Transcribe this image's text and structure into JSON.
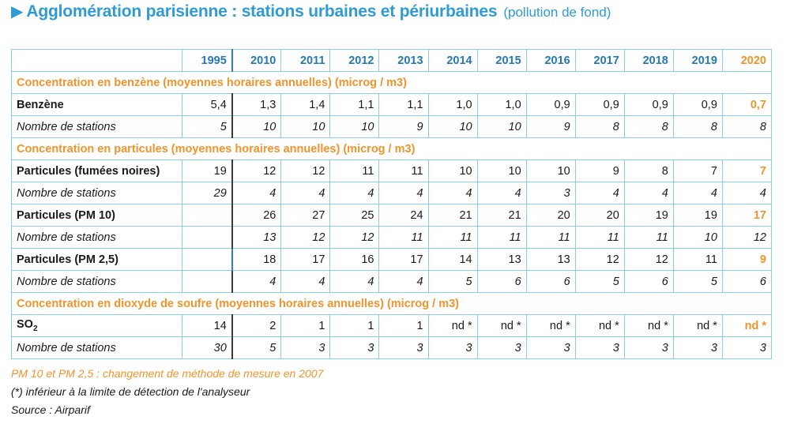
{
  "title": {
    "main": "Agglomération parisienne : stations urbaines et périurbaines",
    "sub": "(pollution de fond)"
  },
  "table": {
    "years": [
      "1995",
      "2010",
      "2011",
      "2012",
      "2013",
      "2014",
      "2015",
      "2016",
      "2017",
      "2018",
      "2019",
      "2020"
    ],
    "rows": [
      {
        "type": "section",
        "label": "Concentration en benzène  (moyennes horaires annuelles) (microg / m3)"
      },
      {
        "type": "measure",
        "label": "Benzène",
        "values": [
          "5,4",
          "1,3",
          "1,4",
          "1,1",
          "1,1",
          "1,0",
          "1,0",
          "0,9",
          "0,9",
          "0,9",
          "0,9",
          "0,7"
        ]
      },
      {
        "type": "stations",
        "label": "Nombre de stations",
        "values": [
          "5",
          "10",
          "10",
          "10",
          "9",
          "10",
          "10",
          "9",
          "8",
          "8",
          "8",
          "8"
        ]
      },
      {
        "type": "section",
        "label": "Concentration en particules  (moyennes horaires annuelles) (microg / m3)"
      },
      {
        "type": "measure",
        "label": "Particules (fumées noires)",
        "values": [
          "19",
          "12",
          "12",
          "11",
          "11",
          "10",
          "10",
          "10",
          "9",
          "8",
          "7",
          "7"
        ]
      },
      {
        "type": "stations",
        "label": "Nombre de stations",
        "values": [
          "29",
          "4",
          "4",
          "4",
          "4",
          "4",
          "4",
          "3",
          "4",
          "4",
          "4",
          "4"
        ]
      },
      {
        "type": "measure",
        "label": "Particules (PM 10)",
        "values": [
          "",
          "26",
          "27",
          "25",
          "24",
          "21",
          "21",
          "20",
          "20",
          "19",
          "19",
          "17"
        ]
      },
      {
        "type": "stations",
        "label": "Nombre de stations",
        "values": [
          "",
          "13",
          "12",
          "12",
          "11",
          "11",
          "11",
          "11",
          "11",
          "11",
          "10",
          "12"
        ]
      },
      {
        "type": "measure",
        "label": "Particules (PM 2,5)",
        "values": [
          "",
          "18",
          "17",
          "16",
          "17",
          "14",
          "13",
          "13",
          "12",
          "12",
          "11",
          "9"
        ]
      },
      {
        "type": "stations",
        "label": "Nombre de stations",
        "values": [
          "",
          "4",
          "4",
          "4",
          "4",
          "5",
          "6",
          "6",
          "5",
          "6",
          "5",
          "6"
        ]
      },
      {
        "type": "section",
        "label": "Concentration en dioxyde de soufre   (moyennes horaires annuelles) (microg / m3)"
      },
      {
        "type": "measure",
        "label": "SO",
        "label_sub": "2",
        "values": [
          "14",
          "2",
          "1",
          "1",
          "1",
          "nd *",
          "nd *",
          "nd *",
          "nd *",
          "nd *",
          "nd *",
          "nd *"
        ]
      },
      {
        "type": "stations",
        "label": "Nombre de stations",
        "values": [
          "30",
          "5",
          "3",
          "3",
          "3",
          "3",
          "3",
          "3",
          "3",
          "3",
          "3",
          "3"
        ]
      }
    ]
  },
  "notes": {
    "method_change": "PM 10 et PM 2,5 : changement de méthode de mesure en 2007",
    "detection": "(*) inférieur à la limite de détection de l'analyseur",
    "source": "Source : Airparif"
  },
  "colors": {
    "title_blue": "#2e9bd6",
    "header_blue": "#2578b8",
    "accent_orange": "#f3932a",
    "grid_blue": "#8ccbea"
  }
}
